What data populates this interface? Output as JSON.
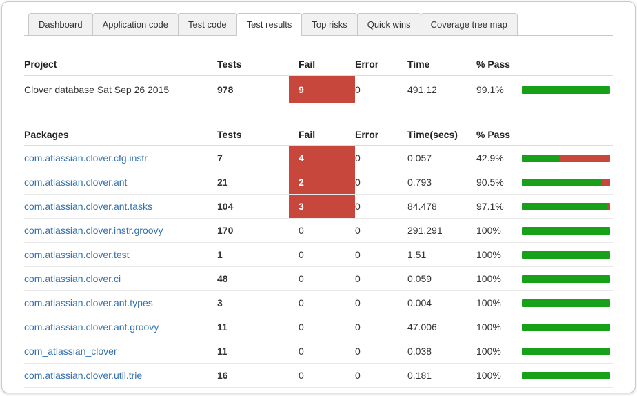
{
  "tabs": [
    {
      "label": "Dashboard",
      "active": false
    },
    {
      "label": "Application code",
      "active": false
    },
    {
      "label": "Test code",
      "active": false
    },
    {
      "label": "Test results",
      "active": true
    },
    {
      "label": "Top risks",
      "active": false
    },
    {
      "label": "Quick wins",
      "active": false
    },
    {
      "label": "Coverage tree map",
      "active": false
    }
  ],
  "project_table": {
    "headers": {
      "name": "Project",
      "tests": "Tests",
      "fail": "Fail",
      "error": "Error",
      "time": "Time",
      "pass": "% Pass"
    },
    "row": {
      "name": "Clover database Sat Sep 26 2015",
      "tests": "978",
      "fail": "9",
      "error": "0",
      "time": "491.12",
      "pass": "99.1%",
      "pass_pct": 99.1
    }
  },
  "packages_table": {
    "headers": {
      "name": "Packages",
      "tests": "Tests",
      "fail": "Fail",
      "error": "Error",
      "time": "Time(secs)",
      "pass": "% Pass"
    },
    "rows": [
      {
        "name": "com.atlassian.clover.cfg.instr",
        "tests": "7",
        "fail": "4",
        "error": "0",
        "time": "0.057",
        "pass": "42.9%",
        "pass_pct": 42.9
      },
      {
        "name": "com.atlassian.clover.ant",
        "tests": "21",
        "fail": "2",
        "error": "0",
        "time": "0.793",
        "pass": "90.5%",
        "pass_pct": 90.5
      },
      {
        "name": "com.atlassian.clover.ant.tasks",
        "tests": "104",
        "fail": "3",
        "error": "0",
        "time": "84.478",
        "pass": "97.1%",
        "pass_pct": 97.1
      },
      {
        "name": "com.atlassian.clover.instr.groovy",
        "tests": "170",
        "fail": "0",
        "error": "0",
        "time": "291.291",
        "pass": "100%",
        "pass_pct": 100
      },
      {
        "name": "com.atlassian.clover.test",
        "tests": "1",
        "fail": "0",
        "error": "0",
        "time": "1.51",
        "pass": "100%",
        "pass_pct": 100
      },
      {
        "name": "com.atlassian.clover.ci",
        "tests": "48",
        "fail": "0",
        "error": "0",
        "time": "0.059",
        "pass": "100%",
        "pass_pct": 100
      },
      {
        "name": "com.atlassian.clover.ant.types",
        "tests": "3",
        "fail": "0",
        "error": "0",
        "time": "0.004",
        "pass": "100%",
        "pass_pct": 100
      },
      {
        "name": "com.atlassian.clover.ant.groovy",
        "tests": "11",
        "fail": "0",
        "error": "0",
        "time": "47.006",
        "pass": "100%",
        "pass_pct": 100
      },
      {
        "name": "com_atlassian_clover",
        "tests": "11",
        "fail": "0",
        "error": "0",
        "time": "0.038",
        "pass": "100%",
        "pass_pct": 100
      },
      {
        "name": "com.atlassian.clover.util.trie",
        "tests": "16",
        "fail": "0",
        "error": "0",
        "time": "0.181",
        "pass": "100%",
        "pass_pct": 100
      }
    ]
  },
  "colors": {
    "fail_bg": "#c8473d",
    "bar_pass": "#18a018",
    "bar_fail": "#c8473d",
    "link_blue": "#3572b0"
  }
}
